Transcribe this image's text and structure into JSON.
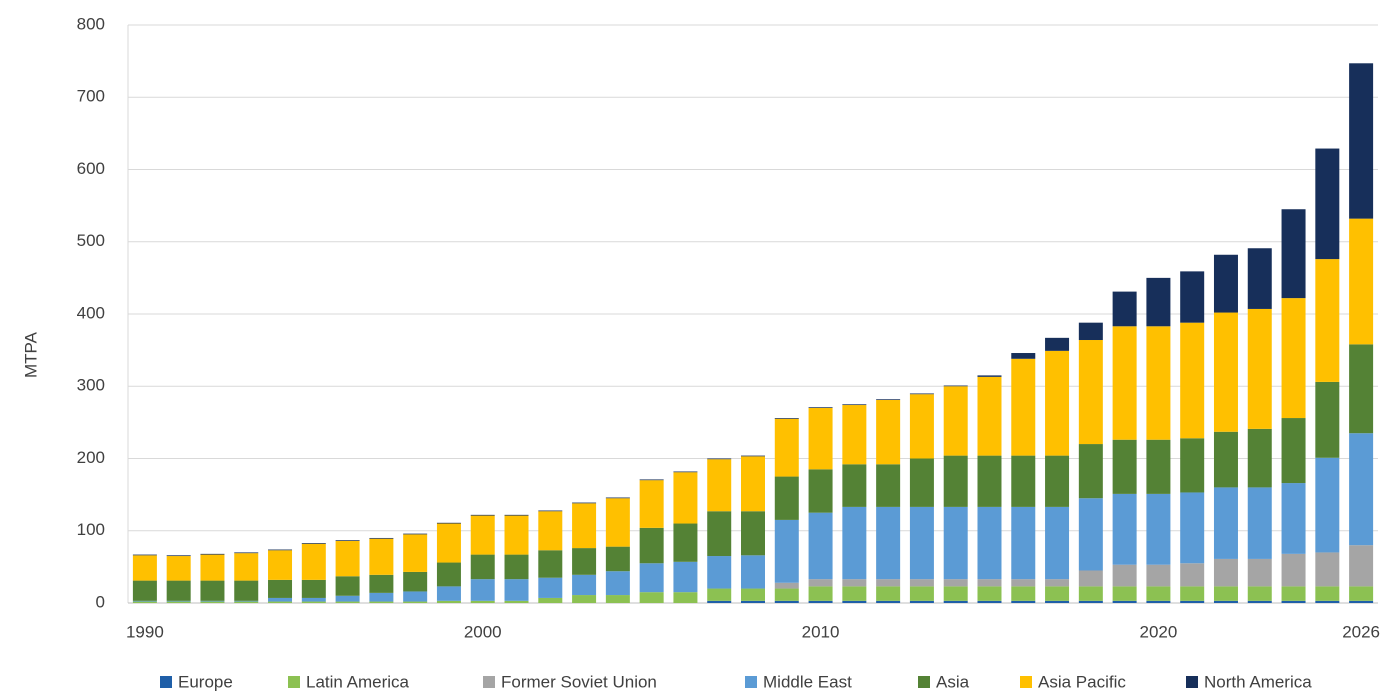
{
  "chart_data": {
    "type": "stacked_bar",
    "y_label": "MTPA",
    "categories": [
      "1990",
      null,
      null,
      null,
      null,
      null,
      null,
      null,
      null,
      null,
      "2000",
      null,
      null,
      null,
      null,
      null,
      null,
      null,
      null,
      null,
      "2010",
      null,
      null,
      null,
      null,
      null,
      null,
      null,
      null,
      null,
      "2020",
      null,
      null,
      null,
      null,
      null,
      "2026"
    ],
    "series": [
      {
        "name": "Europe",
        "color": "#1f5fa8",
        "values": [
          0,
          0,
          0,
          0,
          0,
          0,
          0,
          0,
          0,
          0,
          0,
          0,
          0,
          0,
          0,
          0,
          0,
          3,
          3,
          3,
          3,
          3,
          3,
          3,
          3,
          3,
          3,
          3,
          3,
          3,
          3,
          3,
          3,
          3,
          3,
          3,
          3
        ]
      },
      {
        "name": "Latin America",
        "color": "#8cc152",
        "values": [
          2,
          2,
          2,
          2,
          2,
          2,
          2,
          2,
          2,
          3,
          3,
          3,
          7,
          11,
          11,
          15,
          15,
          17,
          17,
          17,
          20,
          20,
          20,
          20,
          20,
          20,
          20,
          20,
          20,
          20,
          20,
          20,
          20,
          20,
          20,
          20,
          20
        ]
      },
      {
        "name": "Former Soviet Union",
        "color": "#a5a5a5",
        "values": [
          0,
          0,
          0,
          0,
          0,
          0,
          0,
          0,
          0,
          0,
          0,
          0,
          0,
          0,
          0,
          0,
          0,
          0,
          0,
          8,
          10,
          10,
          10,
          10,
          10,
          10,
          10,
          10,
          22,
          30,
          30,
          32,
          38,
          38,
          45,
          47,
          57
        ]
      },
      {
        "name": "Middle East",
        "color": "#5b9bd5",
        "values": [
          1,
          1,
          1,
          1,
          5,
          5,
          8,
          12,
          14,
          20,
          30,
          30,
          28,
          28,
          33,
          40,
          42,
          45,
          46,
          87,
          92,
          100,
          100,
          100,
          100,
          100,
          100,
          100,
          100,
          98,
          98,
          98,
          99,
          99,
          98,
          131,
          155
        ]
      },
      {
        "name": "Asia",
        "color": "#548235",
        "values": [
          28,
          28,
          28,
          28,
          25,
          25,
          27,
          25,
          27,
          33,
          34,
          34,
          38,
          37,
          34,
          49,
          53,
          62,
          61,
          60,
          60,
          59,
          59,
          67,
          71,
          71,
          71,
          71,
          75,
          75,
          75,
          75,
          77,
          81,
          90,
          105,
          123
        ]
      },
      {
        "name": "Asia Pacific",
        "color": "#ffc000",
        "values": [
          35,
          34,
          36,
          38,
          41,
          50,
          49,
          50,
          52,
          54,
          54,
          54,
          54,
          62,
          67,
          66,
          71,
          72,
          76,
          80,
          85,
          82,
          89,
          89,
          96,
          109,
          134,
          145,
          144,
          157,
          157,
          160,
          165,
          166,
          166,
          170,
          174
        ]
      },
      {
        "name": "North America",
        "color": "#172f5a",
        "values": [
          1,
          1,
          1,
          1,
          1,
          1,
          1,
          1,
          1,
          1,
          1,
          1,
          1,
          1,
          1,
          1,
          1,
          1,
          1,
          1,
          1,
          1,
          1,
          1,
          1,
          2,
          8,
          18,
          24,
          48,
          67,
          71,
          80,
          84,
          123,
          153,
          215
        ]
      }
    ],
    "ylim": [
      0,
      800
    ],
    "yticks": [
      0,
      100,
      200,
      300,
      400,
      500,
      600,
      700,
      800
    ],
    "grid": true,
    "legend": "bottom"
  }
}
